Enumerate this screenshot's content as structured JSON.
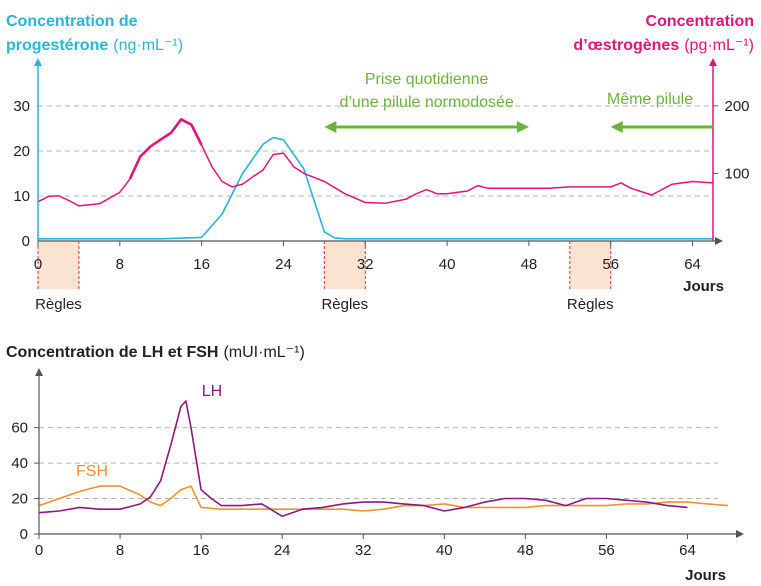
{
  "chart_data": [
    {
      "type": "line",
      "title": "",
      "xlabel": "Jours",
      "ylabel_left_line1": "Concentration de",
      "ylabel_left_line2": "progestérone",
      "ylabel_left_unit": "(ng·mL⁻¹)",
      "ylabel_right_line1": "Concentration",
      "ylabel_right_line2": "d’œstrogènes",
      "ylabel_right_unit": "(pg·mL⁻¹)",
      "xlim": [
        0,
        66
      ],
      "ylim_left": [
        0,
        38
      ],
      "ylim_right": [
        0,
        253
      ],
      "x_ticks": [
        "0",
        "8",
        "16",
        "24",
        "32",
        "40",
        "48",
        "56",
        "64"
      ],
      "y_ticks_left": [
        "0",
        "10",
        "20",
        "30"
      ],
      "y_ticks_right": [
        "100",
        "200"
      ],
      "grid": "horizontal dashed",
      "colors": {
        "progesterone": "#29b6d8",
        "oestrogenes": "#e0157a",
        "annotation": "#6cb33e",
        "regles": "#fbe3d2",
        "regles_line": "#d9303a"
      },
      "series": [
        {
          "axis": "left",
          "x": [
            0,
            4,
            8,
            12,
            16,
            18,
            20,
            22,
            23,
            24,
            26,
            27,
            28,
            29,
            30,
            32,
            40,
            48,
            56,
            64,
            66
          ],
          "values": [
            0.5,
            0.5,
            0.5,
            0.5,
            0.8,
            6,
            15,
            21.5,
            23,
            22.5,
            16,
            9,
            2,
            0.7,
            0.5,
            0.5,
            0.5,
            0.5,
            0.5,
            0.5,
            0.5
          ]
        },
        {
          "axis": "right",
          "x": [
            0,
            1,
            2,
            3,
            4,
            6,
            8,
            9,
            10,
            11,
            12,
            13,
            14,
            15,
            16,
            17,
            18,
            19,
            20,
            21,
            22,
            23,
            24,
            25,
            26,
            28,
            30,
            32,
            34,
            36,
            37,
            38,
            39,
            40,
            42,
            43,
            44,
            46,
            48,
            50,
            52,
            54,
            56,
            57,
            58,
            60,
            62,
            64,
            66
          ],
          "values": [
            58,
            66,
            67,
            60,
            52,
            55,
            72,
            92,
            125,
            140,
            150,
            160,
            180,
            172,
            142,
            110,
            88,
            80,
            84,
            95,
            105,
            128,
            130,
            110,
            100,
            88,
            70,
            57,
            56,
            62,
            70,
            76,
            70,
            70,
            74,
            82,
            78,
            78,
            78,
            78,
            80,
            80,
            80,
            86,
            78,
            68,
            84,
            88,
            86
          ]
        }
      ],
      "annotations": [
        {
          "text_line1": "Prise quotidienne",
          "text_line2": "d’une pilule normodosée",
          "x_start": 28,
          "x_end": 48
        },
        {
          "text_line1": "Même pilule",
          "x_start": 56,
          "x_end": 66
        }
      ],
      "regles": [
        {
          "label": "Règles",
          "x_start": 0,
          "x_end": 4
        },
        {
          "label": "Règles",
          "x_start": 28,
          "x_end": 32
        },
        {
          "label": "Règles",
          "x_start": 52,
          "x_end": 56
        }
      ]
    },
    {
      "type": "line",
      "title": "",
      "ylabel": "Concentration de LH et FSH",
      "ylabel_unit": "(mUI·mL⁻¹)",
      "xlabel": "Jours",
      "xlim": [
        0,
        68
      ],
      "ylim": [
        0,
        88
      ],
      "x_ticks": [
        "0",
        "8",
        "16",
        "24",
        "32",
        "40",
        "48",
        "56",
        "64"
      ],
      "y_ticks": [
        "0",
        "20",
        "40",
        "60"
      ],
      "grid": "horizontal dashed",
      "series": [
        {
          "name": "LH",
          "color": "#8a1a80",
          "x": [
            0,
            2,
            4,
            6,
            8,
            10,
            11,
            12,
            13,
            14,
            14.5,
            15,
            16,
            17,
            18,
            20,
            22,
            24,
            26,
            28,
            30,
            32,
            34,
            36,
            38,
            40,
            42,
            44,
            46,
            48,
            50,
            52,
            54,
            56,
            58,
            60,
            62,
            64
          ],
          "values": [
            12,
            13,
            15,
            14,
            14,
            17,
            21,
            30,
            50,
            72,
            75,
            60,
            25,
            20,
            16,
            16,
            17,
            10,
            14,
            15,
            17,
            18,
            18,
            17,
            16,
            13,
            15,
            18,
            20,
            20,
            19,
            16,
            20,
            20,
            19,
            18,
            16,
            15
          ]
        },
        {
          "name": "FSH",
          "color": "#f0922f",
          "x": [
            0,
            2,
            4,
            6,
            8,
            10,
            11,
            12,
            13,
            14,
            15,
            16,
            18,
            20,
            22,
            24,
            26,
            28,
            30,
            32,
            34,
            36,
            38,
            40,
            42,
            44,
            46,
            48,
            50,
            52,
            54,
            56,
            58,
            60,
            62,
            64,
            66,
            68
          ],
          "values": [
            16,
            20,
            24,
            27,
            27,
            22,
            18,
            16,
            20,
            25,
            27,
            15,
            14,
            14,
            14,
            14,
            14,
            14,
            14,
            13,
            14,
            16,
            16,
            17,
            15,
            15,
            15,
            15,
            16,
            16,
            16,
            16,
            17,
            17,
            18,
            18,
            17,
            16
          ]
        }
      ]
    }
  ]
}
